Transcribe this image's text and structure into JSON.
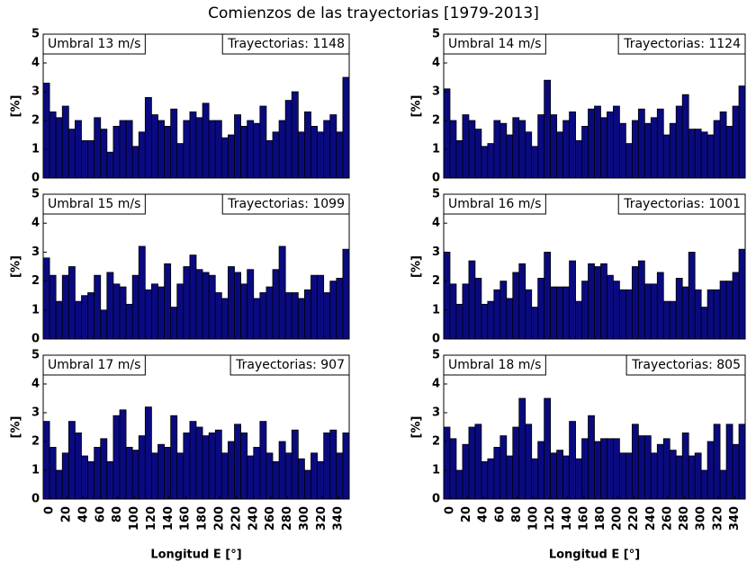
{
  "title": "Comienzos de las trayectorias [1979-2013]",
  "chart_data": [
    {
      "type": "histogram",
      "label": "Umbral 13 m/s",
      "annotation": "Trayectorias: 1148",
      "ylabel": "[%]",
      "color": "#0a0a80",
      "bins": [
        -7.5,
        0,
        7.5,
        15,
        22.5,
        30,
        37.5,
        45,
        52.5,
        60,
        67.5,
        75,
        82.5,
        90,
        97.5,
        105,
        112.5,
        120,
        127.5,
        135,
        142.5,
        150,
        157.5,
        165,
        172.5,
        180,
        187.5,
        195,
        202.5,
        210,
        217.5,
        225,
        232.5,
        240,
        247.5,
        255,
        262.5,
        270,
        277.5,
        285,
        292.5,
        300,
        307.5,
        315,
        322.5,
        330,
        337.5,
        345,
        352.5
      ],
      "values": [
        3.3,
        2.3,
        2.1,
        2.5,
        1.7,
        2.0,
        1.3,
        1.3,
        2.1,
        1.7,
        0.9,
        1.8,
        2.0,
        2.0,
        1.1,
        1.6,
        2.8,
        2.2,
        2.0,
        1.8,
        2.4,
        1.2,
        2.0,
        2.3,
        2.1,
        2.6,
        2.0,
        2.0,
        1.4,
        1.5,
        2.2,
        1.8,
        2.0,
        1.9,
        2.5,
        1.3,
        1.6,
        2.0,
        2.7,
        3.0,
        1.6,
        2.3,
        1.8,
        1.6,
        2.0,
        2.2,
        1.6,
        3.5
      ],
      "xlim": [
        -7.5,
        352.5
      ],
      "ylim": [
        0,
        5
      ],
      "yticks": [
        0,
        1,
        2,
        3,
        4,
        5
      ]
    },
    {
      "type": "histogram",
      "label": "Umbral 14 m/s",
      "annotation": "Trayectorias: 1124",
      "ylabel": "[%]",
      "color": "#0a0a80",
      "bins": [
        -7.5,
        0,
        7.5,
        15,
        22.5,
        30,
        37.5,
        45,
        52.5,
        60,
        67.5,
        75,
        82.5,
        90,
        97.5,
        105,
        112.5,
        120,
        127.5,
        135,
        142.5,
        150,
        157.5,
        165,
        172.5,
        180,
        187.5,
        195,
        202.5,
        210,
        217.5,
        225,
        232.5,
        240,
        247.5,
        255,
        262.5,
        270,
        277.5,
        285,
        292.5,
        300,
        307.5,
        315,
        322.5,
        330,
        337.5,
        345,
        352.5
      ],
      "values": [
        3.1,
        2.0,
        1.3,
        2.2,
        2.0,
        1.7,
        1.1,
        1.2,
        2.0,
        1.9,
        1.5,
        2.1,
        2.0,
        1.6,
        1.1,
        2.2,
        3.4,
        2.2,
        1.6,
        2.0,
        2.3,
        1.3,
        1.8,
        2.4,
        2.5,
        2.1,
        2.3,
        2.5,
        1.9,
        1.2,
        2.0,
        2.4,
        1.9,
        2.1,
        2.4,
        1.5,
        1.9,
        2.5,
        2.9,
        1.7,
        1.7,
        1.6,
        1.5,
        2.0,
        2.3,
        1.8,
        2.5,
        3.2
      ],
      "xlim": [
        -7.5,
        352.5
      ],
      "ylim": [
        0,
        5
      ],
      "yticks": [
        0,
        1,
        2,
        3,
        4,
        5
      ]
    },
    {
      "type": "histogram",
      "label": "Umbral 15 m/s",
      "annotation": "Trayectorias: 1099",
      "ylabel": "[%]",
      "color": "#0a0a80",
      "bins": [
        -7.5,
        0,
        7.5,
        15,
        22.5,
        30,
        37.5,
        45,
        52.5,
        60,
        67.5,
        75,
        82.5,
        90,
        97.5,
        105,
        112.5,
        120,
        127.5,
        135,
        142.5,
        150,
        157.5,
        165,
        172.5,
        180,
        187.5,
        195,
        202.5,
        210,
        217.5,
        225,
        232.5,
        240,
        247.5,
        255,
        262.5,
        270,
        277.5,
        285,
        292.5,
        300,
        307.5,
        315,
        322.5,
        330,
        337.5,
        345,
        352.5
      ],
      "values": [
        2.8,
        2.2,
        1.3,
        2.2,
        2.5,
        1.3,
        1.5,
        1.6,
        2.2,
        1.0,
        2.3,
        1.9,
        1.8,
        1.2,
        2.2,
        3.2,
        1.7,
        1.9,
        1.8,
        2.6,
        1.1,
        1.9,
        2.5,
        2.9,
        2.4,
        2.3,
        2.2,
        1.6,
        1.4,
        2.5,
        2.3,
        1.9,
        2.4,
        1.4,
        1.6,
        1.8,
        2.4,
        3.2,
        1.6,
        1.6,
        1.4,
        1.7,
        2.2,
        2.2,
        1.6,
        2.0,
        2.1,
        3.1
      ],
      "xlim": [
        -7.5,
        352.5
      ],
      "ylim": [
        0,
        5
      ],
      "yticks": [
        0,
        1,
        2,
        3,
        4,
        5
      ]
    },
    {
      "type": "histogram",
      "label": "Umbral 16 m/s",
      "annotation": "Trayectorias: 1001",
      "ylabel": "[%]",
      "color": "#0a0a80",
      "bins": [
        -7.5,
        0,
        7.5,
        15,
        22.5,
        30,
        37.5,
        45,
        52.5,
        60,
        67.5,
        75,
        82.5,
        90,
        97.5,
        105,
        112.5,
        120,
        127.5,
        135,
        142.5,
        150,
        157.5,
        165,
        172.5,
        180,
        187.5,
        195,
        202.5,
        210,
        217.5,
        225,
        232.5,
        240,
        247.5,
        255,
        262.5,
        270,
        277.5,
        285,
        292.5,
        300,
        307.5,
        315,
        322.5,
        330,
        337.5,
        345,
        352.5
      ],
      "values": [
        3.0,
        1.9,
        1.2,
        1.9,
        2.7,
        2.1,
        1.2,
        1.3,
        1.7,
        2.0,
        1.4,
        2.3,
        2.6,
        1.7,
        1.1,
        2.1,
        3.0,
        1.8,
        1.8,
        1.8,
        2.7,
        1.3,
        2.0,
        2.6,
        2.5,
        2.6,
        2.2,
        2.0,
        1.7,
        1.7,
        2.5,
        2.7,
        1.9,
        1.9,
        2.3,
        1.3,
        1.3,
        2.1,
        1.8,
        3.0,
        1.7,
        1.1,
        1.7,
        1.7,
        2.0,
        2.0,
        2.3,
        3.1
      ],
      "xlim": [
        -7.5,
        352.5
      ],
      "ylim": [
        0,
        5
      ],
      "yticks": [
        0,
        1,
        2,
        3,
        4,
        5
      ]
    },
    {
      "type": "histogram",
      "label": "Umbral 17 m/s",
      "annotation": "Trayectorias: 907",
      "ylabel": "[%]",
      "xlabel": "Longitud E [°]",
      "color": "#0a0a80",
      "bins": [
        -7.5,
        0,
        7.5,
        15,
        22.5,
        30,
        37.5,
        45,
        52.5,
        60,
        67.5,
        75,
        82.5,
        90,
        97.5,
        105,
        112.5,
        120,
        127.5,
        135,
        142.5,
        150,
        157.5,
        165,
        172.5,
        180,
        187.5,
        195,
        202.5,
        210,
        217.5,
        225,
        232.5,
        240,
        247.5,
        255,
        262.5,
        270,
        277.5,
        285,
        292.5,
        300,
        307.5,
        315,
        322.5,
        330,
        337.5,
        345,
        352.5
      ],
      "values": [
        2.7,
        1.8,
        1.0,
        1.6,
        2.7,
        2.3,
        1.5,
        1.3,
        1.8,
        2.1,
        1.3,
        2.9,
        3.1,
        1.8,
        1.7,
        2.2,
        3.2,
        1.6,
        1.9,
        1.8,
        2.9,
        1.6,
        2.3,
        2.7,
        2.5,
        2.2,
        2.3,
        2.4,
        1.6,
        2.0,
        2.6,
        2.3,
        1.5,
        1.8,
        2.7,
        1.6,
        1.3,
        2.0,
        1.6,
        2.4,
        1.4,
        1.0,
        1.6,
        1.3,
        2.3,
        2.4,
        1.6,
        2.3
      ],
      "xlim": [
        -7.5,
        352.5
      ],
      "xticks": [
        0,
        20,
        40,
        60,
        80,
        100,
        120,
        140,
        160,
        180,
        200,
        220,
        240,
        260,
        280,
        300,
        320,
        340
      ],
      "ylim": [
        0,
        5
      ],
      "yticks": [
        0,
        1,
        2,
        3,
        4,
        5
      ]
    },
    {
      "type": "histogram",
      "label": "Umbral 18 m/s",
      "annotation": "Trayectorias: 805",
      "ylabel": "[%]",
      "xlabel": "Longitud E [°]",
      "color": "#0a0a80",
      "bins": [
        -7.5,
        0,
        7.5,
        15,
        22.5,
        30,
        37.5,
        45,
        52.5,
        60,
        67.5,
        75,
        82.5,
        90,
        97.5,
        105,
        112.5,
        120,
        127.5,
        135,
        142.5,
        150,
        157.5,
        165,
        172.5,
        180,
        187.5,
        195,
        202.5,
        210,
        217.5,
        225,
        232.5,
        240,
        247.5,
        255,
        262.5,
        270,
        277.5,
        285,
        292.5,
        300,
        307.5,
        315,
        322.5,
        330,
        337.5,
        345,
        352.5
      ],
      "values": [
        2.5,
        2.1,
        1.0,
        1.9,
        2.5,
        2.6,
        1.3,
        1.4,
        1.8,
        2.2,
        1.5,
        2.5,
        3.5,
        2.6,
        1.4,
        2.0,
        3.5,
        1.6,
        1.7,
        1.5,
        2.7,
        1.4,
        2.1,
        2.9,
        2.0,
        2.1,
        2.1,
        2.1,
        1.6,
        1.6,
        2.6,
        2.2,
        2.2,
        1.6,
        1.9,
        2.1,
        1.7,
        1.5,
        2.3,
        1.5,
        1.6,
        1.0,
        2.0,
        2.6,
        1.0,
        2.6,
        1.9,
        2.6
      ],
      "xlim": [
        -7.5,
        352.5
      ],
      "xticks": [
        0,
        20,
        40,
        60,
        80,
        100,
        120,
        140,
        160,
        180,
        200,
        220,
        240,
        260,
        280,
        300,
        320,
        340
      ],
      "ylim": [
        0,
        5
      ],
      "yticks": [
        0,
        1,
        2,
        3,
        4,
        5
      ]
    }
  ]
}
